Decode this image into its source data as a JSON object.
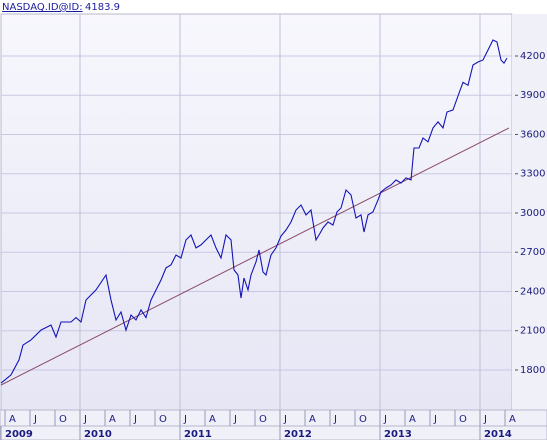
{
  "chart_data": {
    "type": "line",
    "symbol": "NASDAQ.ID@ID:",
    "last_value": "4183.9",
    "x": [
      2009.21,
      2009.31,
      2009.39,
      2009.43,
      2009.51,
      2009.61,
      2009.71,
      2009.76,
      2009.81,
      2009.91,
      2009.96,
      2010.01,
      2010.06,
      2010.16,
      2010.26,
      2010.31,
      2010.36,
      2010.41,
      2010.46,
      2010.51,
      2010.56,
      2010.61,
      2010.66,
      2010.71,
      2010.81,
      2010.86,
      2010.91,
      2010.96,
      2011.01,
      2011.06,
      2011.11,
      2011.16,
      2011.21,
      2011.26,
      2011.31,
      2011.36,
      2011.41,
      2011.46,
      2011.51,
      2011.54,
      2011.58,
      2011.61,
      2011.64,
      2011.68,
      2011.71,
      2011.76,
      2011.79,
      2011.83,
      2011.86,
      2011.91,
      2011.96,
      2012.01,
      2012.06,
      2012.11,
      2012.16,
      2012.21,
      2012.26,
      2012.31,
      2012.36,
      2012.39,
      2012.43,
      2012.48,
      2012.53,
      2012.57,
      2012.61,
      2012.66,
      2012.71,
      2012.76,
      2012.81,
      2012.84,
      2012.88,
      2012.93,
      2012.98,
      2013.01,
      2013.06,
      2013.11,
      2013.16,
      2013.21,
      2013.26,
      2013.31,
      2013.34,
      2013.39,
      2013.43,
      2013.48,
      2013.53,
      2013.58,
      2013.63,
      2013.67,
      2013.73,
      2013.78,
      2013.83,
      2013.88,
      2013.93,
      2013.98,
      2014.03,
      2014.08,
      2014.13,
      2014.17,
      2014.21,
      2014.24,
      2014.27
    ],
    "series": [
      {
        "color": "#1414b8",
        "values": [
          1700,
          1762,
          1877,
          1990,
          2030,
          2105,
          2144,
          2052,
          2167,
          2167,
          2200,
          2167,
          2335,
          2412,
          2526,
          2335,
          2182,
          2243,
          2105,
          2220,
          2182,
          2259,
          2200,
          2335,
          2488,
          2580,
          2603,
          2679,
          2656,
          2794,
          2832,
          2733,
          2756,
          2794,
          2832,
          2733,
          2656,
          2832,
          2794,
          2565,
          2526,
          2350,
          2503,
          2412,
          2526,
          2626,
          2717,
          2549,
          2526,
          2679,
          2733,
          2824,
          2870,
          2931,
          3023,
          3061,
          2985,
          3023,
          2794,
          2832,
          2885,
          2931,
          2908,
          3008,
          3038,
          3176,
          3138,
          2962,
          2985,
          2855,
          2985,
          3008,
          3100,
          3161,
          3191,
          3214,
          3252,
          3229,
          3268,
          3252,
          3497,
          3497,
          3573,
          3543,
          3650,
          3696,
          3650,
          3772,
          3788,
          3894,
          3999,
          3976,
          4131,
          4154,
          4169,
          4246,
          4322,
          4307,
          4169,
          4146,
          4183.9
        ]
      }
    ],
    "trend": {
      "color": "#8a4a6a",
      "x": [
        2009.21,
        2014.29
      ],
      "values": [
        1685,
        3650
      ]
    },
    "xlim": [
      2009.21,
      2014.32
    ],
    "ylim": [
      1494,
      4521
    ],
    "yticks": [
      1800,
      2100,
      2400,
      2700,
      3000,
      3300,
      3600,
      3900,
      4200
    ],
    "xticks": [
      {
        "value": 2009.25,
        "label": "A"
      },
      {
        "value": 2009.5,
        "label": "J"
      },
      {
        "value": 2009.75,
        "label": "O"
      },
      {
        "value": 2010,
        "label": "J"
      },
      {
        "value": 2010.25,
        "label": "A"
      },
      {
        "value": 2010.5,
        "label": "J"
      },
      {
        "value": 2010.75,
        "label": "O"
      },
      {
        "value": 2011,
        "label": "J"
      },
      {
        "value": 2011.25,
        "label": "A"
      },
      {
        "value": 2011.5,
        "label": "J"
      },
      {
        "value": 2011.75,
        "label": "O"
      },
      {
        "value": 2012,
        "label": "J"
      },
      {
        "value": 2012.25,
        "label": "A"
      },
      {
        "value": 2012.5,
        "label": "J"
      },
      {
        "value": 2012.75,
        "label": "O"
      },
      {
        "value": 2013,
        "label": "J"
      },
      {
        "value": 2013.25,
        "label": "A"
      },
      {
        "value": 2013.5,
        "label": "J"
      },
      {
        "value": 2013.75,
        "label": "O"
      },
      {
        "value": 2014,
        "label": "J"
      },
      {
        "value": 2014.25,
        "label": "A"
      }
    ],
    "year_ticks": [
      2009,
      2010,
      2011,
      2012,
      2013,
      2014
    ],
    "grid": true
  }
}
